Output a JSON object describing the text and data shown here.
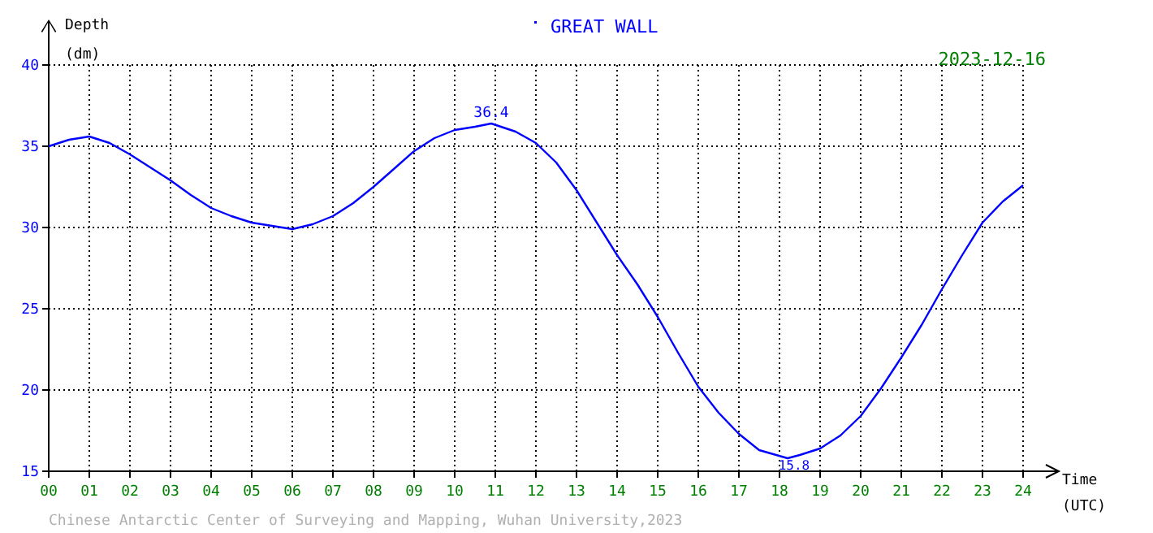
{
  "chart_data": {
    "type": "line",
    "title": "GREAT WALL",
    "subtitle": "2023-12-16",
    "xlabel": "Time\n(UTC)",
    "ylabel": "Depth\n(dm)",
    "annotations": [
      {
        "text": "36.4",
        "x": 10.9,
        "y": 36.4
      },
      {
        "text": "15.8",
        "x": 18.2,
        "y": 15.8
      },
      "Chinese Antarctic Center of Surveying and Mapping, Wuhan University,2023"
    ],
    "x": [
      0,
      0.5,
      1,
      1.5,
      2,
      2.5,
      3,
      3.5,
      4,
      4.5,
      5,
      5.5,
      6,
      6.5,
      7,
      7.5,
      8,
      8.5,
      9,
      9.5,
      10,
      10.5,
      10.9,
      11.5,
      12,
      12.5,
      13,
      13.5,
      14,
      14.5,
      15,
      15.5,
      16,
      16.5,
      17,
      17.5,
      18.2,
      18.5,
      19,
      19.5,
      20,
      20.5,
      21,
      21.5,
      22,
      22.5,
      23,
      23.5,
      24
    ],
    "series": [
      {
        "color": "#0000ff",
        "values": [
          35.0,
          35.4,
          35.6,
          35.2,
          34.5,
          33.7,
          32.9,
          32.0,
          31.2,
          30.7,
          30.3,
          30.1,
          29.9,
          30.2,
          30.7,
          31.5,
          32.5,
          33.6,
          34.7,
          35.5,
          36.0,
          36.2,
          36.4,
          35.9,
          35.2,
          34.0,
          32.3,
          30.3,
          28.3,
          26.5,
          24.5,
          22.3,
          20.2,
          18.6,
          17.3,
          16.3,
          15.8,
          16.0,
          16.4,
          17.2,
          18.4,
          20.1,
          22.0,
          24.0,
          26.2,
          28.3,
          30.3,
          31.6,
          32.6
        ]
      }
    ],
    "xlim": [
      0,
      24
    ],
    "xticks": [
      {
        "value": 0,
        "label": "00"
      },
      {
        "value": 1,
        "label": "01"
      },
      {
        "value": 2,
        "label": "02"
      },
      {
        "value": 3,
        "label": "03"
      },
      {
        "value": 4,
        "label": "04"
      },
      {
        "value": 5,
        "label": "05"
      },
      {
        "value": 6,
        "label": "06"
      },
      {
        "value": 7,
        "label": "07"
      },
      {
        "value": 8,
        "label": "08"
      },
      {
        "value": 9,
        "label": "09"
      },
      10,
      11,
      12,
      13,
      14,
      15,
      16,
      17,
      18,
      19,
      20,
      21,
      22,
      23,
      24
    ],
    "ylim": [
      15,
      40
    ],
    "yticks": [
      15,
      20,
      25,
      30,
      35,
      40
    ],
    "grid": true,
    "line_style": "solid"
  }
}
